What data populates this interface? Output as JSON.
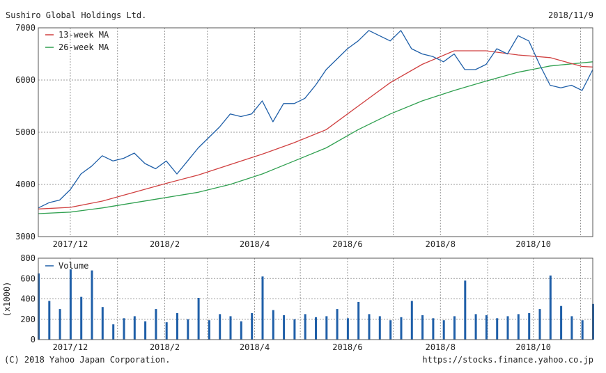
{
  "header": {
    "title": "Sushiro Global Holdings Ltd.",
    "date": "2018/11/9"
  },
  "footer": {
    "copyright": "(C) 2018 Yahoo Japan Corporation.",
    "url": "https://stocks.finance.yahoo.co.jp"
  },
  "colors": {
    "price": "#1f5fa8",
    "ma13": "#d04040",
    "ma26": "#30a050",
    "volume": "#1f5fa8",
    "grid": "#999999",
    "frame": "#555555"
  },
  "chart_data": [
    {
      "type": "line",
      "title": "Sushiro Global Holdings Ltd.",
      "date_label": "2018/11/9",
      "xlabel": "",
      "ylabel": "",
      "ylim": [
        3000,
        7000
      ],
      "y_ticks": [
        3000,
        4000,
        5000,
        6000,
        7000
      ],
      "x_tick_labels": [
        "2017/12",
        "2018/2",
        "2018/4",
        "2018/6",
        "2018/8",
        "2018/10"
      ],
      "x_range": [
        "2017-11-10",
        "2018-11-09"
      ],
      "grid": true,
      "legend_position": "top-left",
      "series": [
        {
          "name": "",
          "role": "price",
          "x": [
            "2017-11-10",
            "2017-11-17",
            "2017-11-24",
            "2017-12-01",
            "2017-12-08",
            "2017-12-15",
            "2017-12-22",
            "2017-12-29",
            "2018-01-05",
            "2018-01-12",
            "2018-01-19",
            "2018-01-26",
            "2018-02-02",
            "2018-02-09",
            "2018-02-16",
            "2018-02-23",
            "2018-03-02",
            "2018-03-09",
            "2018-03-16",
            "2018-03-23",
            "2018-03-30",
            "2018-04-06",
            "2018-04-13",
            "2018-04-20",
            "2018-04-27",
            "2018-05-04",
            "2018-05-11",
            "2018-05-18",
            "2018-05-25",
            "2018-06-01",
            "2018-06-08",
            "2018-06-15",
            "2018-06-22",
            "2018-06-29",
            "2018-07-06",
            "2018-07-13",
            "2018-07-20",
            "2018-07-27",
            "2018-08-03",
            "2018-08-10",
            "2018-08-17",
            "2018-08-24",
            "2018-08-31",
            "2018-09-07",
            "2018-09-14",
            "2018-09-21",
            "2018-09-28",
            "2018-10-05",
            "2018-10-12",
            "2018-10-19",
            "2018-10-26",
            "2018-11-02",
            "2018-11-09"
          ],
          "values": [
            3550,
            3650,
            3700,
            3900,
            4200,
            4350,
            4550,
            4450,
            4500,
            4600,
            4400,
            4300,
            4450,
            4200,
            4450,
            4700,
            4900,
            5100,
            5350,
            5300,
            5350,
            5600,
            5200,
            5550,
            5550,
            5650,
            5900,
            6200,
            6400,
            6600,
            6750,
            6950,
            6850,
            6750,
            6950,
            6600,
            6500,
            6450,
            6350,
            6500,
            6200,
            6200,
            6300,
            6600,
            6500,
            6850,
            6750,
            6300,
            5900,
            5850,
            5900,
            5800,
            6200
          ]
        },
        {
          "name": "13-week MA",
          "role": "ma13",
          "x": [
            "2017-11-10",
            "2017-12-01",
            "2017-12-22",
            "2018-01-12",
            "2018-02-02",
            "2018-02-23",
            "2018-03-16",
            "2018-04-06",
            "2018-04-27",
            "2018-05-18",
            "2018-06-08",
            "2018-06-29",
            "2018-07-20",
            "2018-08-10",
            "2018-08-31",
            "2018-09-21",
            "2018-10-12",
            "2018-11-02",
            "2018-11-09"
          ],
          "values": [
            3530,
            3560,
            3680,
            3850,
            4020,
            4180,
            4380,
            4580,
            4800,
            5050,
            5500,
            5950,
            6300,
            6560,
            6560,
            6480,
            6430,
            6260,
            6250
          ]
        },
        {
          "name": "26-week MA",
          "role": "ma26",
          "x": [
            "2017-11-10",
            "2017-12-01",
            "2017-12-22",
            "2018-01-12",
            "2018-02-02",
            "2018-02-23",
            "2018-03-16",
            "2018-04-06",
            "2018-04-27",
            "2018-05-18",
            "2018-06-08",
            "2018-06-29",
            "2018-07-20",
            "2018-08-10",
            "2018-08-31",
            "2018-09-21",
            "2018-10-12",
            "2018-11-02",
            "2018-11-09"
          ],
          "values": [
            3440,
            3470,
            3550,
            3650,
            3750,
            3850,
            4000,
            4200,
            4450,
            4700,
            5050,
            5350,
            5600,
            5800,
            5980,
            6150,
            6270,
            6330,
            6350
          ]
        }
      ]
    },
    {
      "type": "bar",
      "title": "",
      "xlabel": "",
      "ylabel": "(x1000)",
      "ylim": [
        0,
        800
      ],
      "y_ticks": [
        0,
        200,
        400,
        600,
        800
      ],
      "x_tick_labels": [
        "2017/12",
        "2018/2",
        "2018/4",
        "2018/6",
        "2018/8",
        "2018/10"
      ],
      "grid": true,
      "legend_position": "top-left",
      "series": [
        {
          "name": "Volume",
          "x": [
            "2017-11-10",
            "2017-11-17",
            "2017-11-24",
            "2017-12-01",
            "2017-12-08",
            "2017-12-15",
            "2017-12-22",
            "2017-12-29",
            "2018-01-05",
            "2018-01-12",
            "2018-01-19",
            "2018-01-26",
            "2018-02-02",
            "2018-02-09",
            "2018-02-16",
            "2018-02-23",
            "2018-03-02",
            "2018-03-09",
            "2018-03-16",
            "2018-03-23",
            "2018-03-30",
            "2018-04-06",
            "2018-04-13",
            "2018-04-20",
            "2018-04-27",
            "2018-05-04",
            "2018-05-11",
            "2018-05-18",
            "2018-05-25",
            "2018-06-01",
            "2018-06-08",
            "2018-06-15",
            "2018-06-22",
            "2018-06-29",
            "2018-07-06",
            "2018-07-13",
            "2018-07-20",
            "2018-07-27",
            "2018-08-03",
            "2018-08-10",
            "2018-08-17",
            "2018-08-24",
            "2018-08-31",
            "2018-09-07",
            "2018-09-14",
            "2018-09-21",
            "2018-09-28",
            "2018-10-05",
            "2018-10-12",
            "2018-10-19",
            "2018-10-26",
            "2018-11-02",
            "2018-11-09"
          ],
          "values": [
            650,
            380,
            300,
            690,
            420,
            680,
            320,
            150,
            210,
            230,
            180,
            300,
            170,
            260,
            200,
            410,
            190,
            250,
            230,
            180,
            260,
            620,
            290,
            240,
            200,
            250,
            220,
            230,
            300,
            210,
            370,
            250,
            230,
            190,
            220,
            380,
            240,
            210,
            190,
            230,
            580,
            250,
            240,
            210,
            230,
            250,
            260,
            300,
            630,
            330,
            230,
            190,
            350
          ]
        }
      ]
    }
  ]
}
